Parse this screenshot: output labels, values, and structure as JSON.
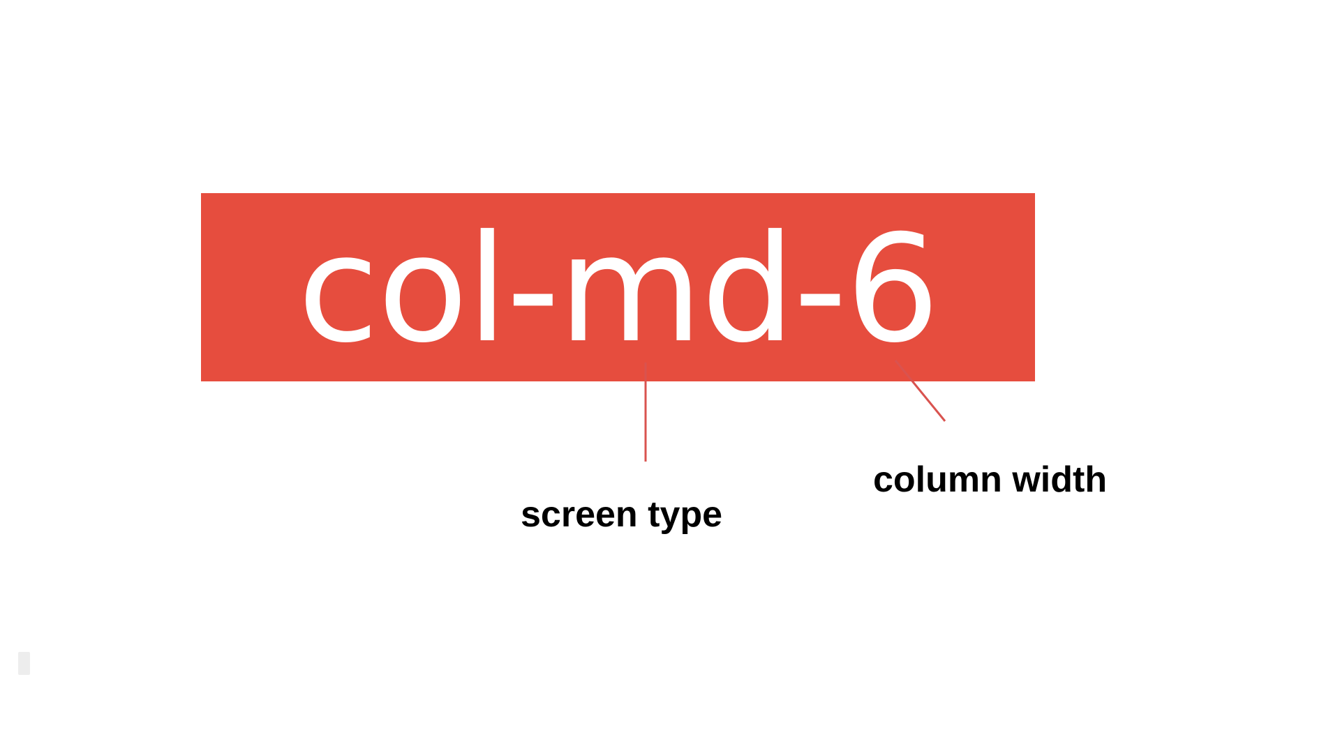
{
  "class_name": "col-md-6",
  "annotations": {
    "screen_type": "screen type",
    "column_width": "column width"
  },
  "colors": {
    "banner": "#e64d3e",
    "banner_text": "#ffffff",
    "connector": "#d9534f",
    "label_text": "#000000"
  }
}
